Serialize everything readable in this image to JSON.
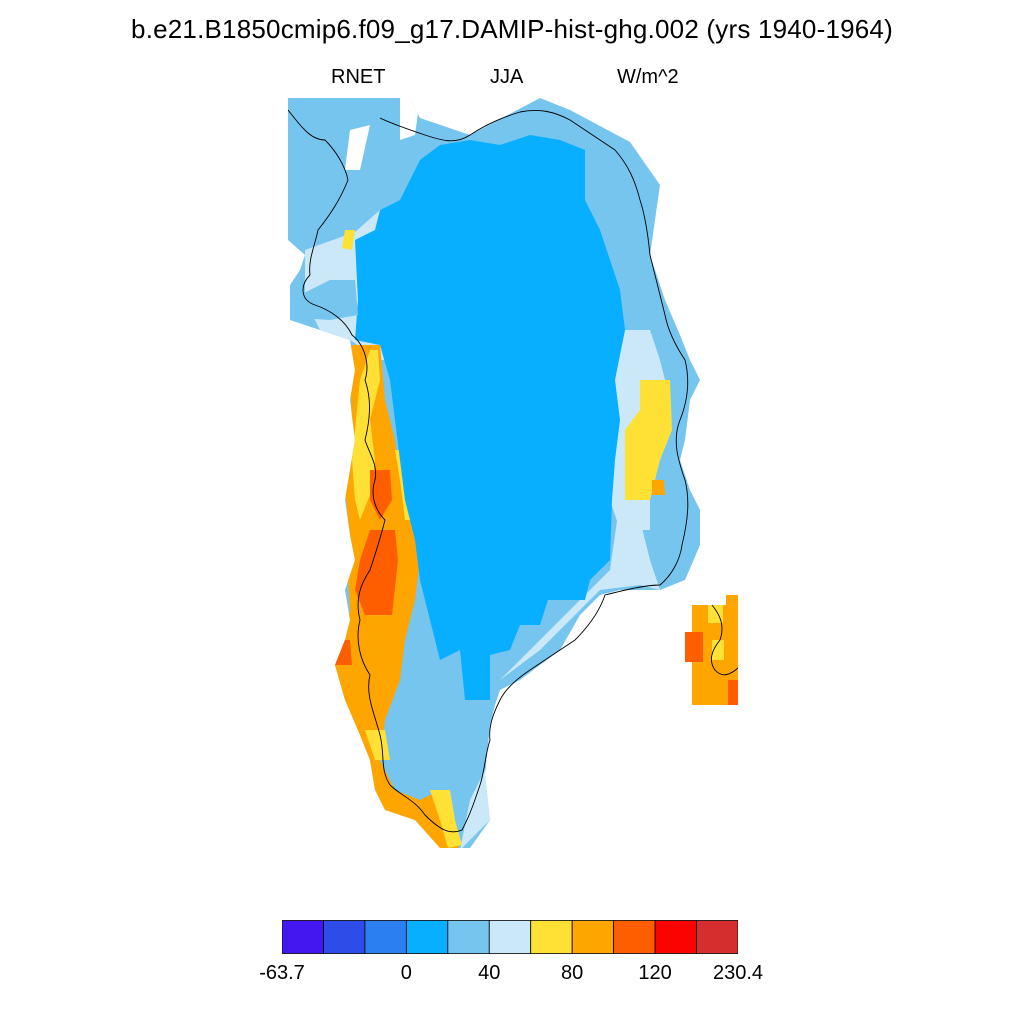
{
  "title": "b.e21.B1850cmip6.f09_g17.DAMIP-hist-ghg.002 (yrs 1940-1964)",
  "subtitle": {
    "variable": "RNET",
    "season": "JJA",
    "units": "W/m^2"
  },
  "colorbar": {
    "colors": [
      "#4217f0",
      "#2d4ce8",
      "#2b7ff0",
      "#08aeff",
      "#76c5ee",
      "#cbe8f8",
      "#ffe135",
      "#ffa500",
      "#ff5e00",
      "#fb0300",
      "#d62e2e"
    ],
    "labels": [
      {
        "text": "-63.7",
        "boundary": 0
      },
      {
        "text": "0",
        "boundary": 3
      },
      {
        "text": "40",
        "boundary": 5
      },
      {
        "text": "80",
        "boundary": 7
      },
      {
        "text": "120",
        "boundary": 9
      },
      {
        "text": "230.4",
        "boundary": 11
      }
    ]
  },
  "map_colors": {
    "interior": "#08aeff",
    "band_40_60": "#76c5ee",
    "band_60_80": "#cbe8f8",
    "band_80_100": "#ffe135",
    "band_100_120": "#ffa500",
    "band_120_140": "#ff5e00",
    "coastline": "#000000"
  }
}
